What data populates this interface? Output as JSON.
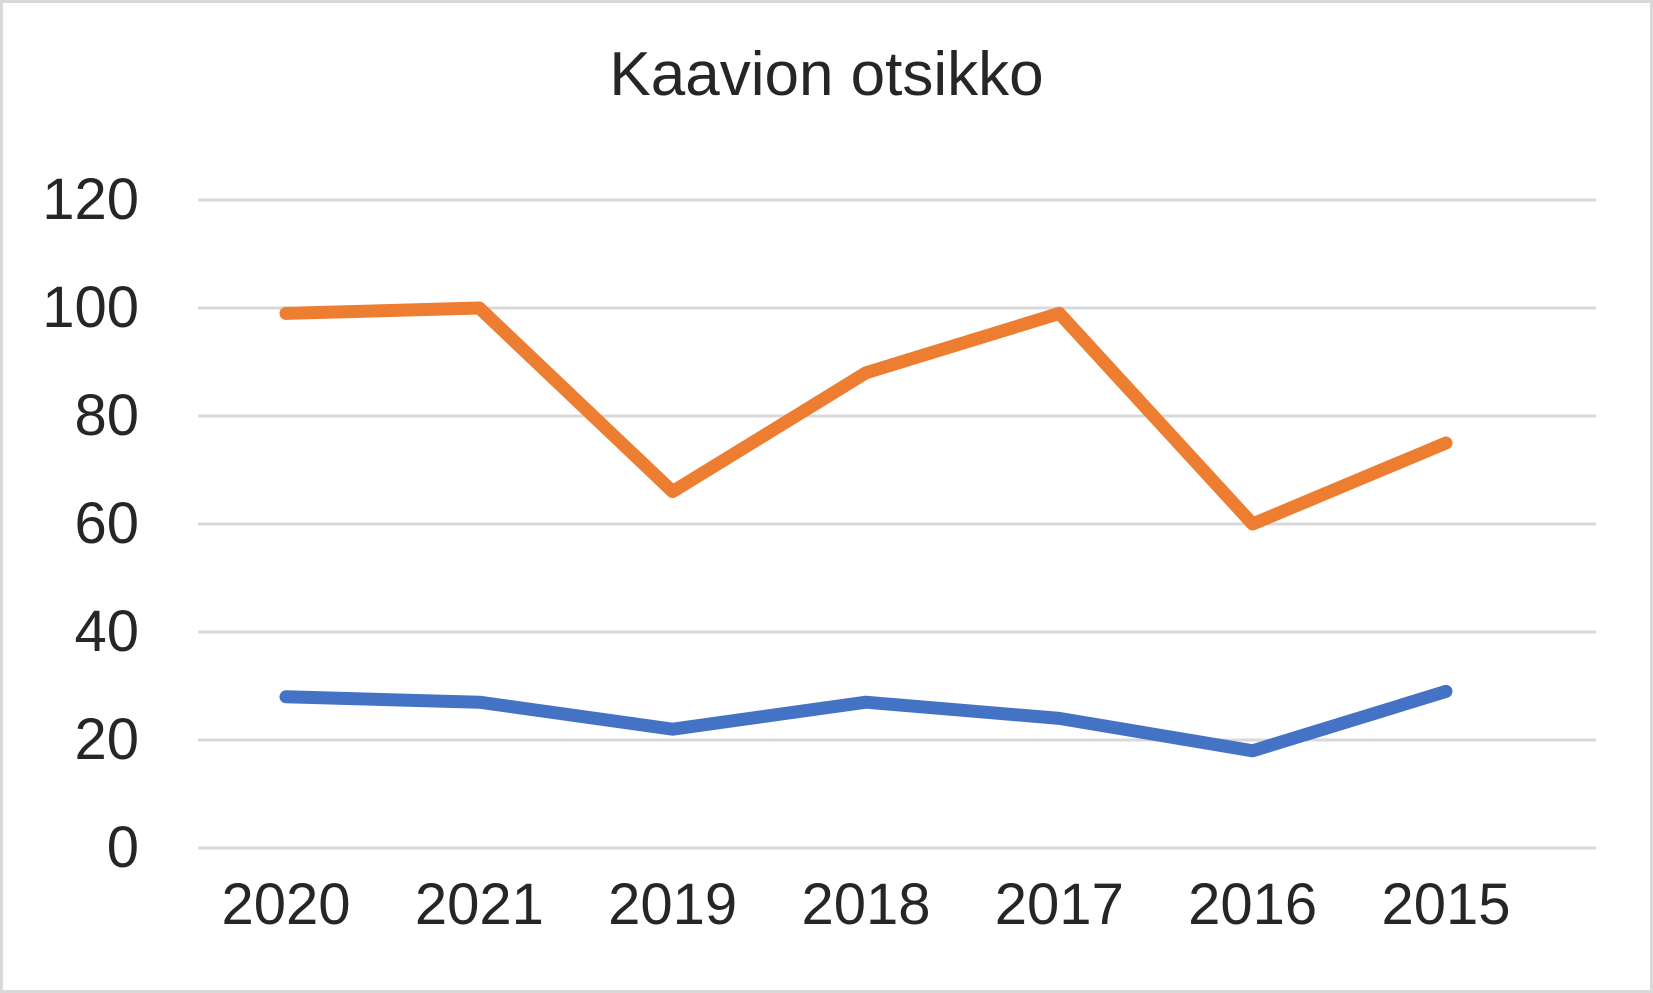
{
  "chart_data": {
    "type": "line",
    "title": "Kaavion otsikko",
    "categories": [
      "2020",
      "2021",
      "2019",
      "2018",
      "2017",
      "2016",
      "2015"
    ],
    "series": [
      {
        "color": "#ED7D31",
        "values": [
          99,
          100,
          66,
          88,
          99,
          60,
          75
        ]
      },
      {
        "color": "#4472C4",
        "values": [
          28,
          27,
          22,
          27,
          24,
          18,
          29
        ]
      }
    ],
    "xlabel": "",
    "ylabel": "",
    "ylim": [
      0,
      120
    ],
    "ytick_step": 20,
    "yticks": [
      "0",
      "20",
      "40",
      "60",
      "80",
      "100",
      "120"
    ],
    "grid": "horizontal",
    "legend": "none",
    "gridline_color": "#D9D9D9",
    "text_color": "#262626",
    "background": "#FFFFFF",
    "frame_border_color": "#D9D9D9",
    "line_width": 13
  }
}
